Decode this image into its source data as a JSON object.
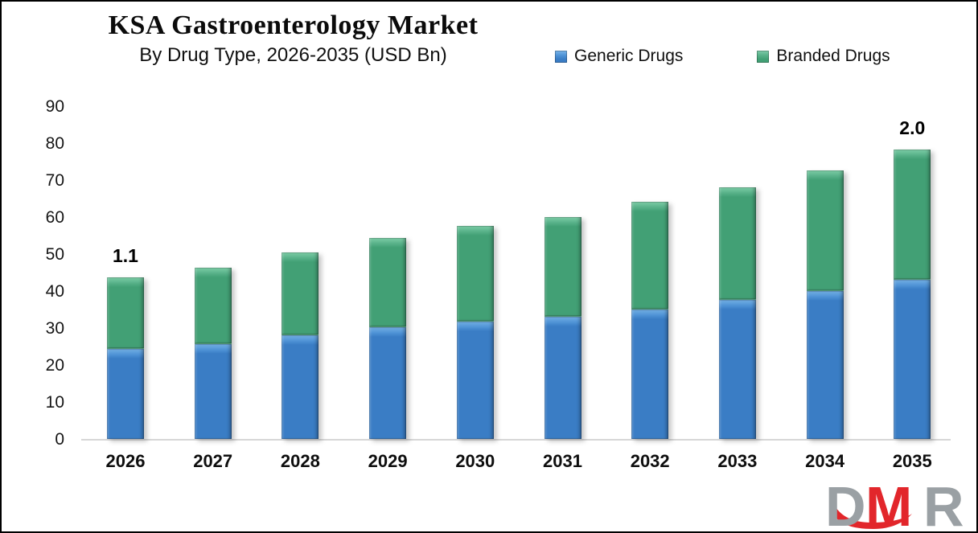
{
  "header": {
    "title": "KSA Gastroenterology Market",
    "subtitle": "By Drug Type, 2026-2035 (USD Bn)"
  },
  "legend": [
    {
      "label": "Generic Drugs",
      "color": "#3a7dc5"
    },
    {
      "label": "Branded Drugs",
      "color": "#42a075"
    }
  ],
  "chart_data": {
    "type": "bar",
    "stacked": true,
    "title": "KSA Gastroenterology Market",
    "subtitle": "By Drug Type, 2026-2035 (USD Bn)",
    "xlabel": "",
    "ylabel": "",
    "ylim": [
      0,
      90
    ],
    "yticks": [
      0,
      10,
      20,
      30,
      40,
      50,
      60,
      70,
      80,
      90
    ],
    "grid": false,
    "legend_position": "top",
    "categories": [
      "2026",
      "2027",
      "2028",
      "2029",
      "2030",
      "2031",
      "2032",
      "2033",
      "2034",
      "2035"
    ],
    "series": [
      {
        "name": "Generic Drugs",
        "color": "#3a7dc5",
        "values": [
          24.3,
          25.7,
          28.0,
          30.2,
          31.8,
          33.0,
          35.0,
          37.5,
          40.0,
          43.1
        ]
      },
      {
        "name": "Branded Drugs",
        "color": "#42a075",
        "values": [
          19.5,
          20.7,
          22.5,
          24.1,
          25.8,
          27.0,
          29.1,
          30.5,
          32.7,
          35.2
        ]
      }
    ],
    "totals": [
      43.8,
      46.4,
      50.5,
      54.3,
      57.6,
      60.0,
      64.1,
      68.0,
      72.7,
      78.3
    ],
    "annotations": [
      {
        "category": "2026",
        "text": "1.1"
      },
      {
        "category": "2035",
        "text": "2.0"
      }
    ]
  },
  "logo": {
    "d": "D",
    "m": "M",
    "r": "R",
    "gray": "#9aa0a4",
    "red": "#e2262b"
  }
}
